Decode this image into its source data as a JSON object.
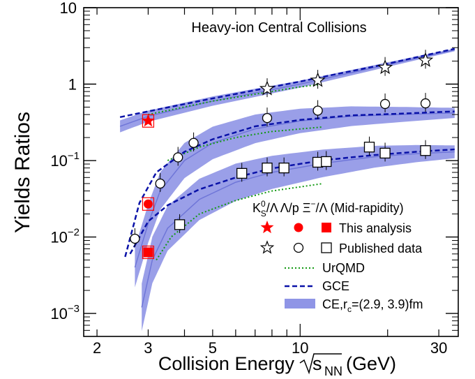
{
  "chart_data": {
    "type": "scatter",
    "title": "Heavy-ion Central Collisions",
    "xlabel": "Collision Energy",
    "xlabel_sqrt": "s",
    "xlabel_sub": "NN",
    "xlabel_unit": "(GeV)",
    "ylabel": "Yields Ratios",
    "x_scale": "log",
    "y_scale": "log",
    "xlim": [
      1.8,
      35
    ],
    "ylim": [
      0.0005,
      10
    ],
    "x_ticks": [
      2,
      3,
      5,
      10,
      30
    ],
    "y_ticks": [
      {
        "value": 10,
        "label": "10",
        "exp": ""
      },
      {
        "value": 1,
        "label": "1",
        "exp": ""
      },
      {
        "value": 0.1,
        "label": "10",
        "exp": "−1"
      },
      {
        "value": 0.01,
        "label": "10",
        "exp": "−2"
      },
      {
        "value": 0.001,
        "label": "10",
        "exp": "−3"
      }
    ],
    "legend": {
      "position": "bottom-right",
      "header": {
        "k_base": "K",
        "k_sup": "0",
        "k_sub": "S",
        "rest": "/Λ Λ/p Ξ",
        "xi_sup": "−",
        "tail": "/Λ (Mid-rapidity)"
      },
      "this_analysis": "This analysis",
      "published": "Published data",
      "urqmd": "UrQMD",
      "gce": "GCE",
      "ce": "CE,r",
      "ce_sub": "c",
      "ce_tail": "=(2.9, 3.9)fm"
    },
    "colors": {
      "this_analysis": "#ff0000",
      "urqmd": "#119911",
      "gce": "#0a12a8",
      "ce_band": "#8f95e6",
      "ce_line": "#6f76d8"
    },
    "this_analysis": [
      {
        "name": "K0S/Λ",
        "marker": "star",
        "x": 3.0,
        "y": 0.33
      },
      {
        "name": "Λ/p",
        "marker": "circle",
        "x": 3.0,
        "y": 0.027
      },
      {
        "name": "Ξ−/Λ",
        "marker": "square",
        "x": 3.0,
        "y": 0.0063
      }
    ],
    "published": [
      {
        "name": "K0S/Λ",
        "marker": "star",
        "points": [
          [
            7.7,
            0.87
          ],
          [
            11.5,
            1.12
          ],
          [
            19.6,
            1.65
          ],
          [
            27,
            2.05
          ]
        ]
      },
      {
        "name": "Λ/p",
        "marker": "circle",
        "points": [
          [
            2.7,
            0.0095
          ],
          [
            3.3,
            0.05
          ],
          [
            3.8,
            0.11
          ],
          [
            4.3,
            0.17
          ],
          [
            7.7,
            0.36
          ],
          [
            11.5,
            0.45
          ],
          [
            19.6,
            0.55
          ],
          [
            27,
            0.56
          ]
        ]
      },
      {
        "name": "Ξ−/Λ",
        "marker": "square",
        "points": [
          [
            3.85,
            0.0145
          ],
          [
            6.3,
            0.068
          ],
          [
            7.7,
            0.08
          ],
          [
            8.8,
            0.08
          ],
          [
            11.5,
            0.095
          ],
          [
            12.3,
            0.097
          ],
          [
            17.3,
            0.15
          ],
          [
            19.6,
            0.125
          ],
          [
            27,
            0.135
          ]
        ]
      }
    ],
    "models": {
      "gce": [
        [
          [
            2.4,
            0.37
          ],
          [
            3,
            0.44
          ],
          [
            5,
            0.65
          ],
          [
            10,
            1.08
          ],
          [
            20,
            1.85
          ],
          [
            34,
            2.9
          ]
        ],
        [
          [
            2.5,
            0.0055
          ],
          [
            2.8,
            0.028
          ],
          [
            3.2,
            0.07
          ],
          [
            4,
            0.13
          ],
          [
            5,
            0.19
          ],
          [
            7,
            0.28
          ],
          [
            10,
            0.34
          ],
          [
            15,
            0.39
          ],
          [
            22,
            0.41
          ],
          [
            34,
            0.44
          ]
        ],
        [
          [
            2.6,
            0.006
          ],
          [
            3,
            0.016
          ],
          [
            3.5,
            0.026
          ],
          [
            4.5,
            0.042
          ],
          [
            6,
            0.06
          ],
          [
            8,
            0.079
          ],
          [
            12,
            0.101
          ],
          [
            18,
            0.118
          ],
          [
            25,
            0.13
          ],
          [
            34,
            0.14
          ]
        ]
      ],
      "urqmd": [
        [
          [
            3,
            0.4
          ],
          [
            5,
            0.6
          ],
          [
            10,
            0.92
          ],
          [
            12,
            1.0
          ]
        ],
        [
          [
            3.5,
            0.1
          ],
          [
            4.5,
            0.15
          ],
          [
            6,
            0.2
          ],
          [
            8,
            0.24
          ],
          [
            12,
            0.275
          ]
        ],
        [
          [
            3.2,
            0.005
          ],
          [
            3.6,
            0.01
          ],
          [
            4.5,
            0.02
          ],
          [
            6,
            0.03
          ],
          [
            8,
            0.04
          ],
          [
            12,
            0.05
          ]
        ]
      ],
      "ce_center": [
        [
          [
            2.4,
            0.28
          ],
          [
            3,
            0.38
          ],
          [
            5,
            0.6
          ],
          [
            10,
            1.0
          ],
          [
            20,
            1.8
          ],
          [
            34,
            2.8
          ]
        ],
        [
          [
            2.7,
            0.004
          ],
          [
            3,
            0.015
          ],
          [
            3.3,
            0.04
          ],
          [
            4,
            0.1
          ],
          [
            5,
            0.17
          ],
          [
            7,
            0.26
          ],
          [
            10,
            0.33
          ],
          [
            15,
            0.38
          ],
          [
            22,
            0.4
          ],
          [
            34,
            0.42
          ]
        ],
        [
          [
            2.85,
            0.0012
          ],
          [
            3.1,
            0.005
          ],
          [
            3.5,
            0.013
          ],
          [
            4.5,
            0.031
          ],
          [
            6,
            0.052
          ],
          [
            8,
            0.07
          ],
          [
            12,
            0.092
          ],
          [
            18,
            0.112
          ],
          [
            25,
            0.123
          ],
          [
            34,
            0.13
          ]
        ]
      ],
      "ce_band_width": [
        0.03,
        0.1,
        0.12
      ]
    }
  }
}
